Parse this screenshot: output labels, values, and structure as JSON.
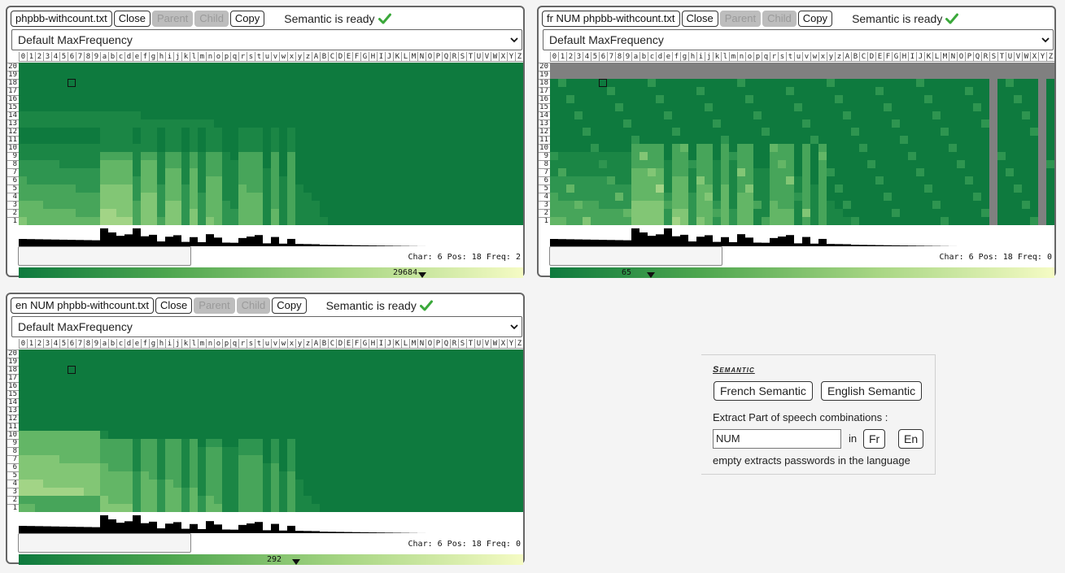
{
  "ruler_chars": [
    "0",
    "1",
    "2",
    "3",
    "4",
    "5",
    "6",
    "7",
    "8",
    "9",
    "a",
    "b",
    "c",
    "d",
    "e",
    "f",
    "g",
    "h",
    "i",
    "j",
    "k",
    "l",
    "m",
    "n",
    "o",
    "p",
    "q",
    "r",
    "s",
    "t",
    "u",
    "v",
    "w",
    "x",
    "y",
    "z",
    "A",
    "B",
    "C",
    "D",
    "E",
    "F",
    "G",
    "H",
    "I",
    "J",
    "K",
    "L",
    "M",
    "N",
    "O",
    "P",
    "Q",
    "R",
    "S",
    "T",
    "U",
    "V",
    "W",
    "X",
    "Y",
    "Z"
  ],
  "row_labels": [
    "20",
    "19",
    "18",
    "17",
    "16",
    "15",
    "14",
    "13",
    "12",
    "11",
    "10",
    "9",
    "8",
    "7",
    "6",
    "5",
    "4",
    "3",
    "2",
    "1"
  ],
  "panels": [
    {
      "file_label": "phpbb-withcount.txt",
      "close_label": "Close",
      "parent_label": "Parent",
      "child_label": "Child",
      "copy_label": "Copy",
      "status_text": "Semantic is ready",
      "dropdown_value": "Default MaxFrequency",
      "info_text": "Char: 6 Pos: 18 Freq: 2",
      "gradient_value": "29684",
      "gradient_marker_fraction": 0.8,
      "colors": {
        "base": "#0e7a3e",
        "grey_columns": []
      }
    },
    {
      "file_label": "fr NUM phpbb-withcount.txt",
      "close_label": "Close",
      "parent_label": "Parent",
      "child_label": "Child",
      "copy_label": "Copy",
      "status_text": "Semantic is ready",
      "dropdown_value": "Default MaxFrequency",
      "info_text": "Char: 6 Pos: 18 Freq: 0",
      "gradient_value": "65",
      "gradient_marker_fraction": 0.2,
      "colors": {
        "base": "#0e7a3e",
        "grey_columns": [
          "Y",
          "Y2"
        ]
      }
    },
    {
      "file_label": "en NUM phpbb-withcount.txt",
      "close_label": "Close",
      "parent_label": "Parent",
      "child_label": "Child",
      "copy_label": "Copy",
      "status_text": "Semantic is ready",
      "dropdown_value": "Default MaxFrequency",
      "info_text": "Char: 6 Pos: 18 Freq: 0",
      "gradient_value": "292",
      "gradient_marker_fraction": 0.55,
      "colors": {
        "base": "#0e7a3e",
        "grey_columns": []
      }
    }
  ],
  "semantic": {
    "title": "Semantic",
    "french_button": "French Semantic",
    "english_button": "English Semantic",
    "extract_label": "Extract Part of speech combinations :",
    "input_value": "NUM",
    "in_label": "in",
    "fr_button": "Fr",
    "en_button": "En",
    "hint": "empty extracts passwords in the language"
  },
  "icons": {
    "status": "check-icon",
    "dropdown": "chevron-down-icon"
  }
}
